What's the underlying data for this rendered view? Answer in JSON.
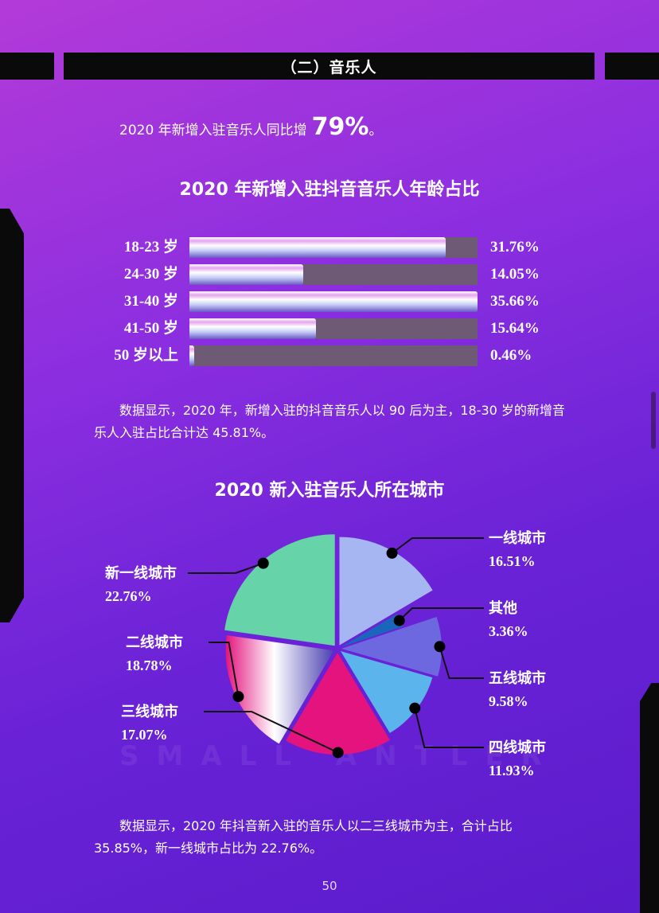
{
  "header": {
    "title": "（二）音乐人"
  },
  "intro": {
    "text": "2020 年新增入驻音乐人同比增",
    "highlight": "79%",
    "suffix": "。"
  },
  "age_chart": {
    "title": "2020 年新增入驻抖音音乐人年龄占比",
    "rows": [
      {
        "label": "18-23 岁",
        "value": 31.76,
        "display": "31.76%"
      },
      {
        "label": "24-30 岁",
        "value": 14.05,
        "display": "14.05%"
      },
      {
        "label": "31-40 岁",
        "value": 35.66,
        "display": "35.66%"
      },
      {
        "label": "41-50 岁",
        "value": 15.64,
        "display": "15.64%"
      },
      {
        "label": "50 岁以上",
        "value": 0.46,
        "display": "0.46%"
      }
    ]
  },
  "para1": "数据显示，2020 年，新增入驻的抖音音乐人以 90 后为主，18-30 岁的新增音乐人入驻占比合计达 45.81%。",
  "city_chart": {
    "title": "2020 新入驻音乐人所在城市",
    "slices": [
      {
        "name": "一线城市",
        "value": 16.51,
        "display": "16.51%",
        "color": "#a6b6f2"
      },
      {
        "name": "其他",
        "value": 3.36,
        "display": "3.36%",
        "color": "#1a66bd"
      },
      {
        "name": "五线城市",
        "value": 9.58,
        "display": "9.58%",
        "color": "#6e68e0"
      },
      {
        "name": "四线城市",
        "value": 11.93,
        "display": "11.93%",
        "color": "#5cb4ec"
      },
      {
        "name": "三线城市",
        "value": 17.07,
        "display": "17.07%",
        "color": "#e4137e"
      },
      {
        "name": "二线城市",
        "value": 18.78,
        "display": "18.78%",
        "color": "gradient"
      },
      {
        "name": "新一线城市",
        "value": 22.76,
        "display": "22.76%",
        "color": "#66d3a8"
      }
    ]
  },
  "chart_data": [
    {
      "type": "bar",
      "title": "2020 年新增入驻抖音音乐人年龄占比",
      "categories": [
        "18-23 岁",
        "24-30 岁",
        "31-40 岁",
        "41-50 岁",
        "50 岁以上"
      ],
      "values": [
        31.76,
        14.05,
        35.66,
        15.64,
        0.46
      ],
      "xlabel": "",
      "ylabel": "",
      "xlim": [
        0,
        35.66
      ]
    },
    {
      "type": "pie",
      "title": "2020 新入驻音乐人所在城市",
      "categories": [
        "一线城市",
        "其他",
        "五线城市",
        "四线城市",
        "三线城市",
        "二线城市",
        "新一线城市"
      ],
      "values": [
        16.51,
        3.36,
        9.58,
        11.93,
        17.07,
        18.78,
        22.76
      ]
    }
  ],
  "para2": "数据显示，2020 年抖音新入驻的音乐人以二三线城市为主，合计占比 35.85%，新一线城市占比为 22.76%。",
  "watermark": "SMALL ANTLER",
  "page_number": "50"
}
